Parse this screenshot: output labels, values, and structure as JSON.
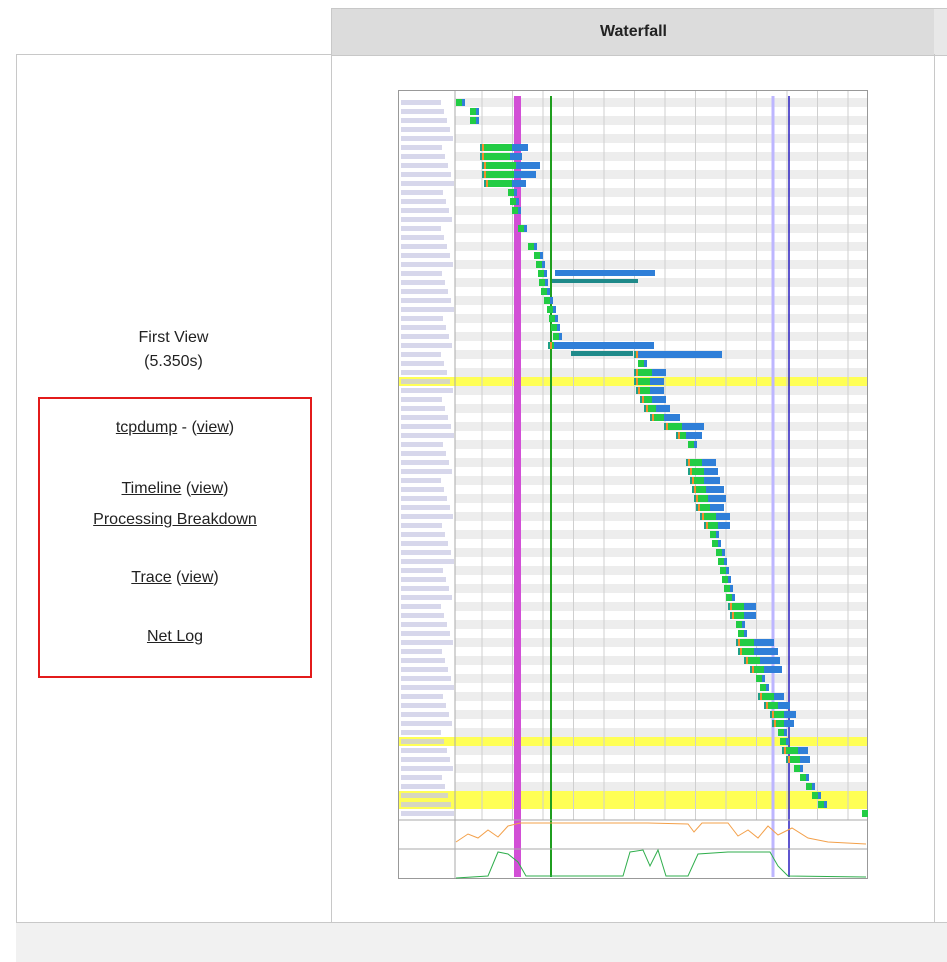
{
  "table": {
    "waterfall_header": "Waterfall"
  },
  "first_view": {
    "title": "First View",
    "load_time": "(5.350s)"
  },
  "links": {
    "tcpdump": "tcpdump",
    "tcpdump_sep": " - (",
    "tcpdump_view": "view",
    "tcpdump_close": ")",
    "timeline": "Timeline",
    "timeline_open": " (",
    "timeline_view": "view",
    "timeline_close": ")",
    "processing": "Processing Breakdown",
    "trace": "Trace",
    "trace_open": " (",
    "trace_view": "view",
    "trace_close": ")",
    "netlog": "Net Log"
  },
  "waterfall": {
    "request_count": 80,
    "highlighted_rows": [
      31,
      71,
      77,
      78
    ],
    "colors": {
      "dns": "#1fa187",
      "connect": "#f28e2b",
      "ssl": "#c54bd6",
      "ttfb": "#22cc44",
      "download": "#2f7fd8",
      "wait": "#1f8a8a",
      "row_alt": "#ededed",
      "highlight": "#ffff55",
      "start_render": "#d24fd6",
      "dom_content": "#1f9e1f",
      "onload": "#bdb6ff",
      "fully_loaded": "#2a1fbf",
      "cpu": "#f3a04a",
      "bandwidth": "#2fae4c"
    }
  }
}
